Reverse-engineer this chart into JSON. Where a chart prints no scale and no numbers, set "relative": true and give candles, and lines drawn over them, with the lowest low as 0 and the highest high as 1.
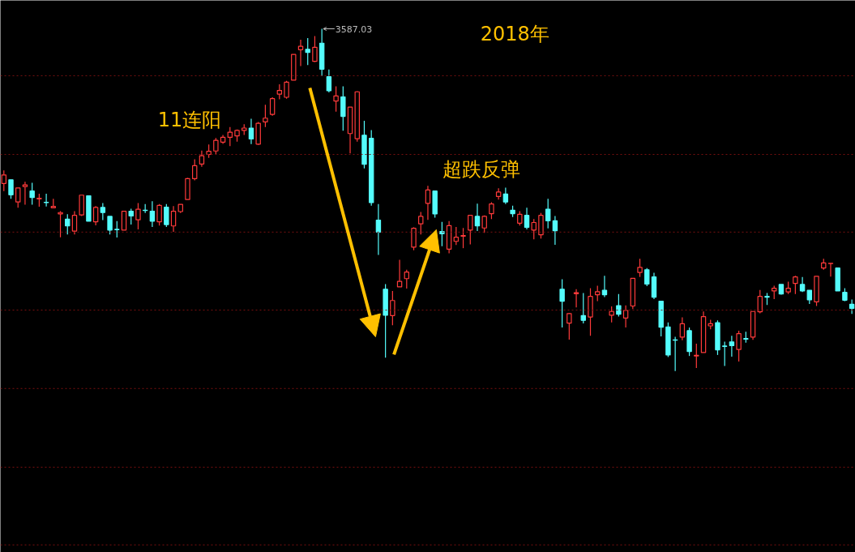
{
  "chart_data": {
    "type": "candlestick",
    "relative": true,
    "ref_lines": [
      {
        "axis": "y",
        "value": 0.863,
        "color": "#7a1010",
        "line_style": "dotted"
      },
      {
        "axis": "y",
        "value": 0.633,
        "color": "#7a1010",
        "line_style": "dotted"
      },
      {
        "axis": "y",
        "value": 0.406,
        "color": "#7a1010",
        "line_style": "dotted"
      },
      {
        "axis": "y",
        "value": 0.178,
        "color": "#7a1010",
        "line_style": "dotted"
      },
      {
        "axis": "y",
        "value": -0.051,
        "color": "#7a1010",
        "line_style": "dotted"
      },
      {
        "axis": "y",
        "value": -0.281,
        "color": "#7a1010",
        "line_style": "dotted"
      },
      {
        "axis": "y",
        "value": -0.508,
        "color": "#7a1010",
        "line_style": "dotted"
      }
    ],
    "categories": [
      null,
      null,
      null,
      null,
      null,
      null,
      null,
      null,
      null,
      null,
      null,
      null,
      null,
      null,
      null,
      null,
      null,
      null,
      null,
      null,
      null,
      null,
      null,
      null,
      null,
      null,
      null,
      null,
      null,
      null,
      null,
      null,
      null,
      null,
      null,
      null,
      null,
      null,
      null,
      null,
      null,
      null,
      null,
      null,
      null,
      null,
      null,
      null,
      null,
      null,
      null,
      null,
      null,
      null,
      null,
      null,
      null,
      null,
      null,
      null,
      null,
      null,
      null,
      null,
      null,
      null,
      null,
      null,
      null,
      null,
      null,
      null,
      null,
      null,
      null,
      null,
      null,
      null,
      null,
      null,
      null,
      null,
      null,
      null,
      null,
      null,
      null,
      null,
      null,
      null,
      null,
      null,
      null,
      null,
      null,
      null,
      null,
      null,
      null,
      null,
      null,
      null,
      null,
      null,
      null,
      null,
      null,
      null,
      null,
      null,
      null,
      null,
      null,
      null,
      null,
      null,
      null,
      null,
      null,
      null,
      null
    ],
    "ohlc": [
      [
        0.548,
        0.586,
        0.526,
        0.573
      ],
      [
        0.559,
        0.559,
        0.503,
        0.515
      ],
      [
        0.494,
        0.535,
        0.477,
        0.535
      ],
      [
        0.539,
        0.553,
        0.486,
        0.544
      ],
      [
        0.526,
        0.55,
        0.486,
        0.507
      ],
      [
        0.503,
        0.518,
        0.48,
        0.505
      ],
      [
        0.493,
        0.518,
        0.481,
        0.492
      ],
      [
        0.477,
        0.503,
        0.477,
        0.481
      ],
      [
        0.459,
        0.467,
        0.391,
        0.463
      ],
      [
        0.444,
        0.458,
        0.399,
        0.424
      ],
      [
        0.409,
        0.467,
        0.399,
        0.455
      ],
      [
        0.456,
        0.514,
        0.453,
        0.514
      ],
      [
        0.512,
        0.512,
        0.438,
        0.438
      ],
      [
        0.436,
        0.482,
        0.426,
        0.478
      ],
      [
        0.478,
        0.491,
        0.441,
        0.463
      ],
      [
        0.452,
        0.452,
        0.399,
        0.412
      ],
      [
        0.414,
        0.438,
        0.39,
        0.413
      ],
      [
        0.412,
        0.467,
        0.412,
        0.467
      ],
      [
        0.467,
        0.474,
        0.428,
        0.453
      ],
      [
        0.442,
        0.491,
        0.414,
        0.473
      ],
      [
        0.47,
        0.488,
        0.462,
        0.469
      ],
      [
        0.467,
        0.496,
        0.421,
        0.438
      ],
      [
        0.436,
        0.488,
        0.425,
        0.484
      ],
      [
        0.479,
        0.488,
        0.421,
        0.428
      ],
      [
        0.424,
        0.482,
        0.407,
        0.467
      ],
      [
        0.466,
        0.487,
        0.462,
        0.487
      ],
      [
        0.501,
        0.564,
        0.501,
        0.562
      ],
      [
        0.562,
        0.619,
        0.557,
        0.6
      ],
      [
        0.605,
        0.644,
        0.597,
        0.629
      ],
      [
        0.633,
        0.662,
        0.623,
        0.642
      ],
      [
        0.643,
        0.681,
        0.633,
        0.674
      ],
      [
        0.669,
        0.69,
        0.664,
        0.683
      ],
      [
        0.683,
        0.713,
        0.657,
        0.698
      ],
      [
        0.687,
        0.706,
        0.67,
        0.703
      ],
      [
        0.703,
        0.721,
        0.69,
        0.71
      ],
      [
        0.71,
        0.737,
        0.663,
        0.678
      ],
      [
        0.663,
        0.728,
        0.661,
        0.724
      ],
      [
        0.728,
        0.778,
        0.713,
        0.739
      ],
      [
        0.75,
        0.8,
        0.746,
        0.796
      ],
      [
        0.809,
        0.838,
        0.794,
        0.82
      ],
      [
        0.8,
        0.848,
        0.796,
        0.844
      ],
      [
        0.85,
        0.925,
        0.85,
        0.925
      ],
      [
        0.939,
        0.968,
        0.891,
        0.949
      ],
      [
        0.94,
        0.973,
        0.894,
        0.931
      ],
      [
        0.905,
        0.979,
        0.903,
        0.946
      ],
      [
        0.958,
        1.0,
        0.862,
        0.882
      ],
      [
        0.86,
        0.881,
        0.814,
        0.819
      ],
      [
        0.789,
        0.832,
        0.758,
        0.804
      ],
      [
        0.801,
        0.832,
        0.702,
        0.744
      ],
      [
        0.694,
        0.771,
        0.636,
        0.771
      ],
      [
        0.679,
        0.818,
        0.67,
        0.816
      ],
      [
        0.689,
        0.731,
        0.592,
        0.604
      ],
      [
        0.68,
        0.704,
        0.483,
        0.492
      ],
      [
        0.441,
        0.488,
        0.339,
        0.406
      ],
      [
        0.239,
        0.254,
        0.039,
        0.163
      ],
      [
        0.162,
        0.234,
        0.134,
        0.206
      ],
      [
        0.246,
        0.325,
        0.246,
        0.262
      ],
      [
        0.27,
        0.296,
        0.241,
        0.289
      ],
      [
        0.362,
        0.42,
        0.353,
        0.417
      ],
      [
        0.43,
        0.465,
        0.399,
        0.452
      ],
      [
        0.49,
        0.541,
        0.442,
        0.529
      ],
      [
        0.526,
        0.526,
        0.448,
        0.459
      ],
      [
        0.408,
        0.436,
        0.365,
        0.401
      ],
      [
        0.356,
        0.438,
        0.344,
        0.425
      ],
      [
        0.379,
        0.421,
        0.368,
        0.391
      ],
      [
        0.394,
        0.418,
        0.359,
        0.396
      ],
      [
        0.412,
        0.455,
        0.37,
        0.455
      ],
      [
        0.452,
        0.489,
        0.409,
        0.424
      ],
      [
        0.418,
        0.455,
        0.404,
        0.452
      ],
      [
        0.46,
        0.493,
        0.444,
        0.488
      ],
      [
        0.51,
        0.534,
        0.501,
        0.523
      ],
      [
        0.517,
        0.536,
        0.488,
        0.494
      ],
      [
        0.47,
        0.483,
        0.45,
        0.46
      ],
      [
        0.432,
        0.467,
        0.425,
        0.458
      ],
      [
        0.455,
        0.477,
        0.414,
        0.42
      ],
      [
        0.412,
        0.444,
        0.385,
        0.434
      ],
      [
        0.398,
        0.462,
        0.387,
        0.455
      ],
      [
        0.473,
        0.503,
        0.417,
        0.439
      ],
      [
        0.439,
        0.453,
        0.369,
        0.41
      ],
      [
        0.239,
        0.268,
        0.127,
        0.204
      ],
      [
        0.14,
        0.17,
        0.092,
        0.168
      ],
      [
        0.226,
        0.239,
        0.186,
        0.229
      ],
      [
        0.162,
        0.228,
        0.139,
        0.148
      ],
      [
        0.158,
        0.242,
        0.103,
        0.218
      ],
      [
        0.223,
        0.249,
        0.204,
        0.232
      ],
      [
        0.236,
        0.278,
        0.216,
        0.223
      ],
      [
        0.163,
        0.189,
        0.142,
        0.174
      ],
      [
        0.191,
        0.225,
        0.159,
        0.166
      ],
      [
        0.155,
        0.192,
        0.127,
        0.177
      ],
      [
        0.19,
        0.271,
        0.181,
        0.271
      ],
      [
        0.288,
        0.328,
        0.275,
        0.303
      ],
      [
        0.296,
        0.301,
        0.248,
        0.254
      ],
      [
        0.275,
        0.287,
        0.21,
        0.216
      ],
      [
        0.204,
        0.204,
        0.101,
        0.128
      ],
      [
        0.129,
        0.142,
        0.041,
        0.047
      ],
      [
        0.091,
        0.1,
        0.0,
        0.09
      ],
      [
        0.099,
        0.157,
        0.09,
        0.138
      ],
      [
        0.118,
        0.127,
        0.044,
        0.057
      ],
      [
        0.044,
        0.08,
        0.009,
        0.046
      ],
      [
        0.054,
        0.174,
        0.054,
        0.159
      ],
      [
        0.132,
        0.15,
        0.122,
        0.138
      ],
      [
        0.141,
        0.148,
        0.047,
        0.062
      ],
      [
        0.073,
        0.086,
        0.015,
        0.072
      ],
      [
        0.085,
        0.103,
        0.042,
        0.074
      ],
      [
        0.063,
        0.118,
        0.028,
        0.109
      ],
      [
        0.095,
        0.115,
        0.083,
        0.093
      ],
      [
        0.099,
        0.174,
        0.091,
        0.174
      ],
      [
        0.173,
        0.237,
        0.169,
        0.218
      ],
      [
        0.218,
        0.228,
        0.193,
        0.216
      ],
      [
        0.234,
        0.249,
        0.21,
        0.242
      ],
      [
        0.253,
        0.253,
        0.223,
        0.225
      ],
      [
        0.231,
        0.261,
        0.225,
        0.242
      ],
      [
        0.256,
        0.278,
        0.225,
        0.275
      ],
      [
        0.253,
        0.275,
        0.231,
        0.234
      ],
      [
        0.236,
        0.236,
        0.196,
        0.208
      ],
      [
        0.202,
        0.277,
        0.19,
        0.277
      ],
      [
        0.301,
        0.328,
        0.296,
        0.316
      ],
      [
        0.314,
        0.315,
        0.276,
        0.315
      ],
      [
        0.301,
        0.301,
        0.234,
        0.234
      ],
      [
        0.23,
        0.242,
        0.204,
        0.207
      ],
      [
        0.195,
        0.209,
        0.167,
        0.183
      ]
    ],
    "annotations": [
      "3587.03",
      "11连阳",
      "超跌反弹",
      "2018年"
    ]
  }
}
